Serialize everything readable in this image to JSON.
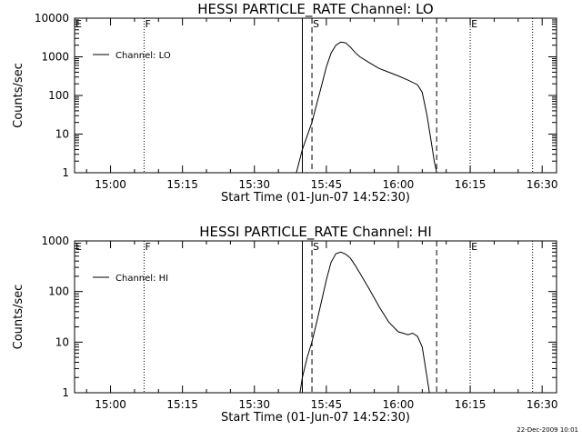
{
  "footer": {
    "timestamp": "22-Dec-2009 10:01"
  },
  "chart_data": [
    {
      "type": "line",
      "title": "HESSI PARTICLE_RATE Channel: LO",
      "xlabel": "Start Time (01-Jun-07 14:52:30)",
      "ylabel": "Counts/sec",
      "yscale": "log",
      "ylim": [
        1,
        10000
      ],
      "yticks": [
        1,
        10,
        100,
        1000,
        10000
      ],
      "ytick_labels": [
        "1",
        "10",
        "100",
        "1000",
        "10000"
      ],
      "xlim": [
        "14:52:30",
        "16:33:00"
      ],
      "xticks": [
        "15:00",
        "15:15",
        "15:30",
        "15:45",
        "16:00",
        "16:15",
        "16:30"
      ],
      "legend": {
        "position": "top-left",
        "entries": [
          "Channel: LO"
        ]
      },
      "markers": [
        {
          "label": "E",
          "time": "14:52:30",
          "style": "dotted"
        },
        {
          "label": "F",
          "time": "15:07:00",
          "style": "dotted"
        },
        {
          "label": "",
          "time": "15:40:00",
          "style": "solid"
        },
        {
          "label": "S",
          "time": "15:42:00",
          "style": "dashed"
        },
        {
          "label": "",
          "time": "16:08:00",
          "style": "dashed"
        },
        {
          "label": "E",
          "time": "16:15:00",
          "style": "dotted"
        },
        {
          "label": "",
          "time": "16:28:00",
          "style": "dotted"
        }
      ],
      "series": [
        {
          "name": "Channel: LO",
          "x": [
            "15:38:45",
            "15:40:00",
            "15:41:00",
            "15:42:00",
            "15:43:00",
            "15:44:00",
            "15:45:00",
            "15:46:00",
            "15:47:00",
            "15:48:00",
            "15:49:00",
            "15:50:00",
            "15:51:00",
            "15:52:00",
            "15:54:00",
            "15:56:00",
            "15:58:00",
            "16:00:00",
            "16:02:00",
            "16:04:00",
            "16:05:00",
            "16:06:00",
            "16:07:00",
            "16:07:30",
            "16:08:00"
          ],
          "y": [
            1,
            4,
            9,
            20,
            60,
            180,
            550,
            1250,
            2000,
            2400,
            2300,
            1800,
            1300,
            1000,
            700,
            500,
            400,
            320,
            250,
            190,
            120,
            30,
            5,
            2,
            1
          ]
        }
      ]
    },
    {
      "type": "line",
      "title": "HESSI PARTICLE_RATE Channel: HI",
      "xlabel": "Start Time (01-Jun-07 14:52:30)",
      "ylabel": "Counts/sec",
      "yscale": "log",
      "ylim": [
        1,
        1000
      ],
      "yticks": [
        1,
        10,
        100,
        1000
      ],
      "ytick_labels": [
        "1",
        "10",
        "100",
        "1000"
      ],
      "xlim": [
        "14:52:30",
        "16:33:00"
      ],
      "xticks": [
        "15:00",
        "15:15",
        "15:30",
        "15:45",
        "16:00",
        "16:15",
        "16:30"
      ],
      "legend": {
        "position": "top-left",
        "entries": [
          "Channel: HI"
        ]
      },
      "markers": [
        {
          "label": "E",
          "time": "14:52:30",
          "style": "dotted"
        },
        {
          "label": "F",
          "time": "15:07:00",
          "style": "dotted"
        },
        {
          "label": "",
          "time": "15:40:00",
          "style": "solid"
        },
        {
          "label": "S",
          "time": "15:42:00",
          "style": "dashed"
        },
        {
          "label": "",
          "time": "16:08:00",
          "style": "dashed"
        },
        {
          "label": "E",
          "time": "16:15:00",
          "style": "dotted"
        },
        {
          "label": "",
          "time": "16:28:00",
          "style": "dotted"
        }
      ],
      "series": [
        {
          "name": "Channel: HI",
          "x": [
            "15:39:30",
            "15:40:00",
            "15:41:00",
            "15:42:00",
            "15:43:00",
            "15:44:00",
            "15:45:00",
            "15:46:00",
            "15:47:00",
            "15:48:00",
            "15:49:00",
            "15:50:00",
            "15:51:00",
            "15:52:00",
            "15:54:00",
            "15:56:00",
            "15:58:00",
            "16:00:00",
            "16:01:00",
            "16:02:00",
            "16:03:00",
            "16:04:00",
            "16:05:00",
            "16:06:00",
            "16:06:30"
          ],
          "y": [
            1,
            2,
            5,
            10,
            25,
            65,
            170,
            380,
            560,
            600,
            550,
            460,
            330,
            230,
            110,
            50,
            25,
            16,
            15,
            14,
            15,
            13,
            8,
            2,
            1
          ]
        }
      ]
    }
  ]
}
